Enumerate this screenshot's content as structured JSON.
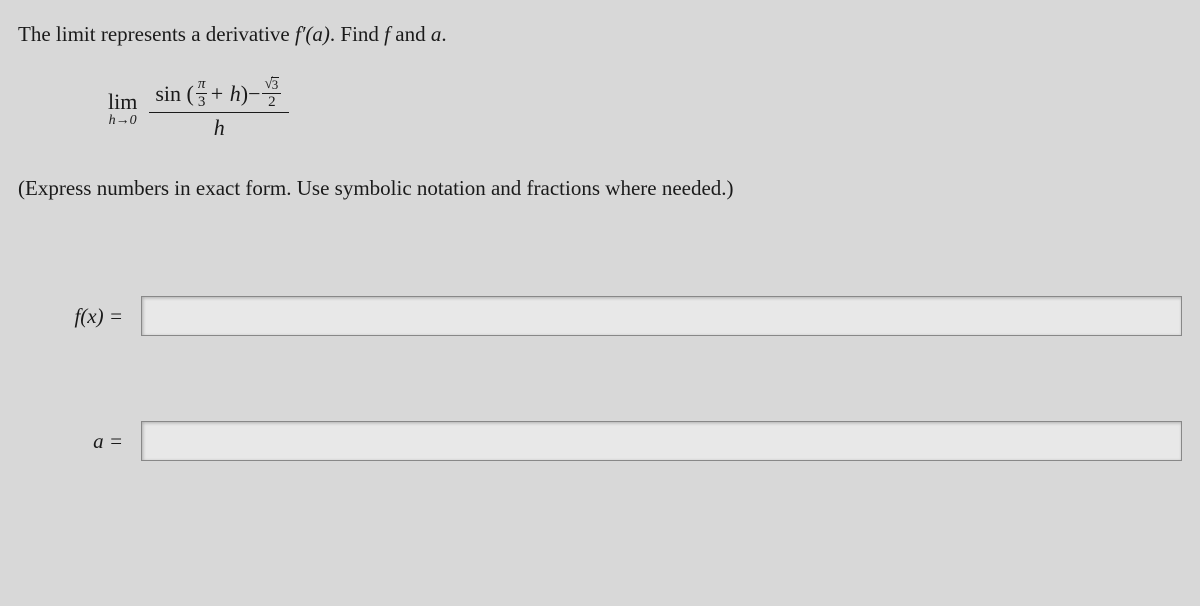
{
  "problem": {
    "text_before": "The limit represents a derivative ",
    "derivative_expr": "f′(a)",
    "text_mid": ". Find ",
    "f_var": "f",
    "text_and": " and ",
    "a_var": "a",
    "text_end": "."
  },
  "limit": {
    "lim_word": "lim",
    "lim_sub": "h→0",
    "sin_word": "sin",
    "paren_open": "(",
    "pi_frac_top": "π",
    "pi_frac_bottom": "3",
    "plus_h": " + h",
    "paren_close": ")",
    "minus": " − ",
    "sqrt_inner": "3",
    "sqrt_frac_bottom": "2",
    "denom": "h"
  },
  "instruction": "(Express numbers in exact form. Use symbolic notation and fractions where needed.)",
  "answers": {
    "fx_label": "f(x) =",
    "fx_value": "",
    "a_label": "a =",
    "a_value": ""
  },
  "styling": {
    "bg_color": "#d8d8d8",
    "text_color": "#1a1a1a",
    "input_bg": "#e8e8e8",
    "input_border": "#888888",
    "body_fontsize": 21,
    "math_fontsize": 22
  }
}
